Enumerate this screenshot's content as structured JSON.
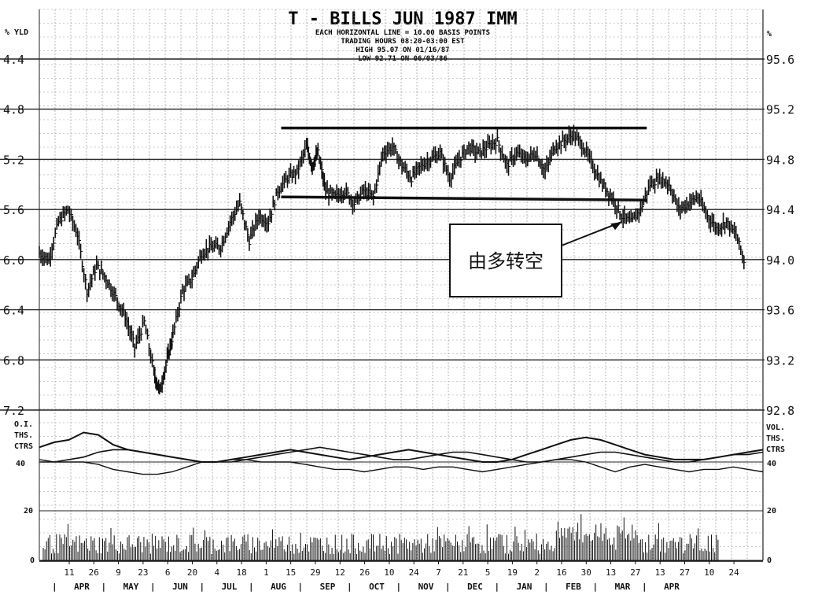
{
  "chart_data": {
    "type": "line",
    "title": "T - BILLS JUN 1987 IMM",
    "subtitle_lines": [
      "EACH HORIZONTAL LINE = 10.00 BASIS POINTS",
      "TRADING HOURS 08:20-03:00 EST",
      "HIGH 95.07 ON 01/16/87",
      "LOW 92.71 ON 06/03/86"
    ],
    "left_axis_label": "% YLD",
    "right_axis_label": "%",
    "left_ticks": [
      "4.4",
      "4.8",
      "5.2",
      "5.6",
      "6.0",
      "6.4",
      "6.8",
      "7.2"
    ],
    "right_ticks": [
      "95.6",
      "95.2",
      "94.8",
      "94.4",
      "94.0",
      "93.6",
      "93.2",
      "92.8"
    ],
    "ylim": [
      92.8,
      95.6
    ],
    "x_dates": [
      "11",
      "26",
      "9",
      "23",
      "6",
      "20",
      "4",
      "18",
      "1",
      "15",
      "29",
      "12",
      "26",
      "10",
      "24",
      "7",
      "21",
      "5",
      "19",
      "2",
      "16",
      "30",
      "13",
      "27",
      "13",
      "27",
      "10",
      "24"
    ],
    "months": [
      "APR",
      "MAY",
      "JUN",
      "JUL",
      "AUG",
      "SEP",
      "OCT",
      "NOV",
      "DEC",
      "JAN",
      "FEB",
      "MAR",
      "APR"
    ],
    "price_series": [
      {
        "x": 0,
        "y": 94.05
      },
      {
        "x": 0.5,
        "y": 94.0
      },
      {
        "x": 1,
        "y": 94.3
      },
      {
        "x": 1.5,
        "y": 94.4
      },
      {
        "x": 2,
        "y": 94.2
      },
      {
        "x": 2.5,
        "y": 93.75
      },
      {
        "x": 3,
        "y": 93.95
      },
      {
        "x": 3.5,
        "y": 93.85
      },
      {
        "x": 4,
        "y": 93.7
      },
      {
        "x": 4.5,
        "y": 93.55
      },
      {
        "x": 5,
        "y": 93.3
      },
      {
        "x": 5.5,
        "y": 93.5
      },
      {
        "x": 6,
        "y": 93.1
      },
      {
        "x": 6.3,
        "y": 92.95
      },
      {
        "x": 6.7,
        "y": 93.2
      },
      {
        "x": 7,
        "y": 93.4
      },
      {
        "x": 7.5,
        "y": 93.75
      },
      {
        "x": 8,
        "y": 93.85
      },
      {
        "x": 8.5,
        "y": 94.05
      },
      {
        "x": 9,
        "y": 94.1
      },
      {
        "x": 9.5,
        "y": 94.1
      },
      {
        "x": 10,
        "y": 94.3
      },
      {
        "x": 10.5,
        "y": 94.45
      },
      {
        "x": 11,
        "y": 94.15
      },
      {
        "x": 11.5,
        "y": 94.35
      },
      {
        "x": 12,
        "y": 94.3
      },
      {
        "x": 12.5,
        "y": 94.55
      },
      {
        "x": 13,
        "y": 94.65
      },
      {
        "x": 13.5,
        "y": 94.7
      },
      {
        "x": 14,
        "y": 94.9
      },
      {
        "x": 14.3,
        "y": 94.75
      },
      {
        "x": 14.6,
        "y": 94.85
      },
      {
        "x": 15,
        "y": 94.55
      },
      {
        "x": 15.5,
        "y": 94.5
      },
      {
        "x": 16,
        "y": 94.55
      },
      {
        "x": 16.5,
        "y": 94.45
      },
      {
        "x": 17,
        "y": 94.55
      },
      {
        "x": 17.5,
        "y": 94.5
      },
      {
        "x": 18,
        "y": 94.85
      },
      {
        "x": 18.5,
        "y": 94.9
      },
      {
        "x": 19,
        "y": 94.75
      },
      {
        "x": 19.5,
        "y": 94.65
      },
      {
        "x": 20,
        "y": 94.75
      },
      {
        "x": 20.5,
        "y": 94.8
      },
      {
        "x": 21,
        "y": 94.85
      },
      {
        "x": 21.5,
        "y": 94.65
      },
      {
        "x": 22,
        "y": 94.8
      },
      {
        "x": 22.5,
        "y": 94.9
      },
      {
        "x": 23,
        "y": 94.85
      },
      {
        "x": 23.5,
        "y": 94.9
      },
      {
        "x": 24,
        "y": 94.95
      },
      {
        "x": 24.5,
        "y": 94.75
      },
      {
        "x": 25,
        "y": 94.85
      },
      {
        "x": 25.5,
        "y": 94.8
      },
      {
        "x": 26,
        "y": 94.85
      },
      {
        "x": 26.5,
        "y": 94.7
      },
      {
        "x": 27,
        "y": 94.9
      },
      {
        "x": 27.5,
        "y": 94.95
      },
      {
        "x": 28,
        "y": 95.0
      },
      {
        "x": 28.5,
        "y": 94.9
      },
      {
        "x": 29,
        "y": 94.75
      },
      {
        "x": 29.5,
        "y": 94.6
      },
      {
        "x": 30,
        "y": 94.5
      },
      {
        "x": 30.5,
        "y": 94.35
      },
      {
        "x": 31,
        "y": 94.3
      },
      {
        "x": 31.5,
        "y": 94.4
      },
      {
        "x": 32,
        "y": 94.6
      },
      {
        "x": 32.5,
        "y": 94.65
      },
      {
        "x": 33,
        "y": 94.6
      },
      {
        "x": 33.5,
        "y": 94.4
      },
      {
        "x": 34,
        "y": 94.45
      },
      {
        "x": 34.5,
        "y": 94.5
      },
      {
        "x": 35,
        "y": 94.35
      },
      {
        "x": 35.5,
        "y": 94.25
      },
      {
        "x": 36,
        "y": 94.3
      },
      {
        "x": 36.5,
        "y": 94.2
      },
      {
        "x": 37,
        "y": 93.95
      }
    ],
    "resistance_line": {
      "x1": 13,
      "x2": 31,
      "y": 95.05
    },
    "support_line": {
      "x1": 13,
      "x2": 31,
      "y": 94.5
    },
    "annotation": {
      "text": "由多转空",
      "arrow_to": {
        "x": 30.5,
        "y": 94.3
      }
    },
    "lower_panel": {
      "left_label": [
        "O.I.",
        "THS.",
        "CTRS"
      ],
      "right_label": [
        "VOL.",
        "THS.",
        "CTRS"
      ],
      "left_ticks": [
        "40",
        "20",
        "0"
      ],
      "right_ticks": [
        "40",
        "20",
        "0"
      ],
      "oi_series": [
        46,
        48,
        49,
        52,
        51,
        47,
        45,
        44,
        43,
        42,
        41,
        40,
        40,
        41,
        42,
        43,
        44,
        45,
        44,
        43,
        42,
        41,
        42,
        43,
        44,
        45,
        44,
        43,
        42,
        41,
        40,
        40,
        41,
        43,
        45,
        47,
        49,
        50,
        49,
        47,
        45,
        43,
        42,
        41,
        41,
        41,
        42,
        43,
        44,
        45
      ],
      "ma_series": [
        40,
        40,
        41,
        42,
        44,
        45,
        45,
        44,
        43,
        42,
        41,
        40,
        40,
        40,
        41,
        42,
        43,
        44,
        45,
        46,
        45,
        44,
        43,
        42,
        41,
        41,
        42,
        43,
        44,
        44,
        43,
        42,
        41,
        40,
        40,
        41,
        42,
        43,
        44,
        44,
        43,
        42,
        41,
        40,
        40,
        41,
        42,
        43,
        43,
        44
      ],
      "vol_series2": [
        41,
        40,
        40,
        40,
        39,
        37,
        36,
        35,
        35,
        36,
        38,
        40,
        40,
        41,
        41,
        40,
        40,
        40,
        39,
        38,
        37,
        37,
        36,
        37,
        38,
        38,
        37,
        38,
        38,
        37,
        36,
        37,
        38,
        39,
        40,
        41,
        41,
        40,
        38,
        36,
        38,
        39,
        38,
        37,
        36,
        37,
        37,
        38,
        37,
        36
      ]
    }
  }
}
